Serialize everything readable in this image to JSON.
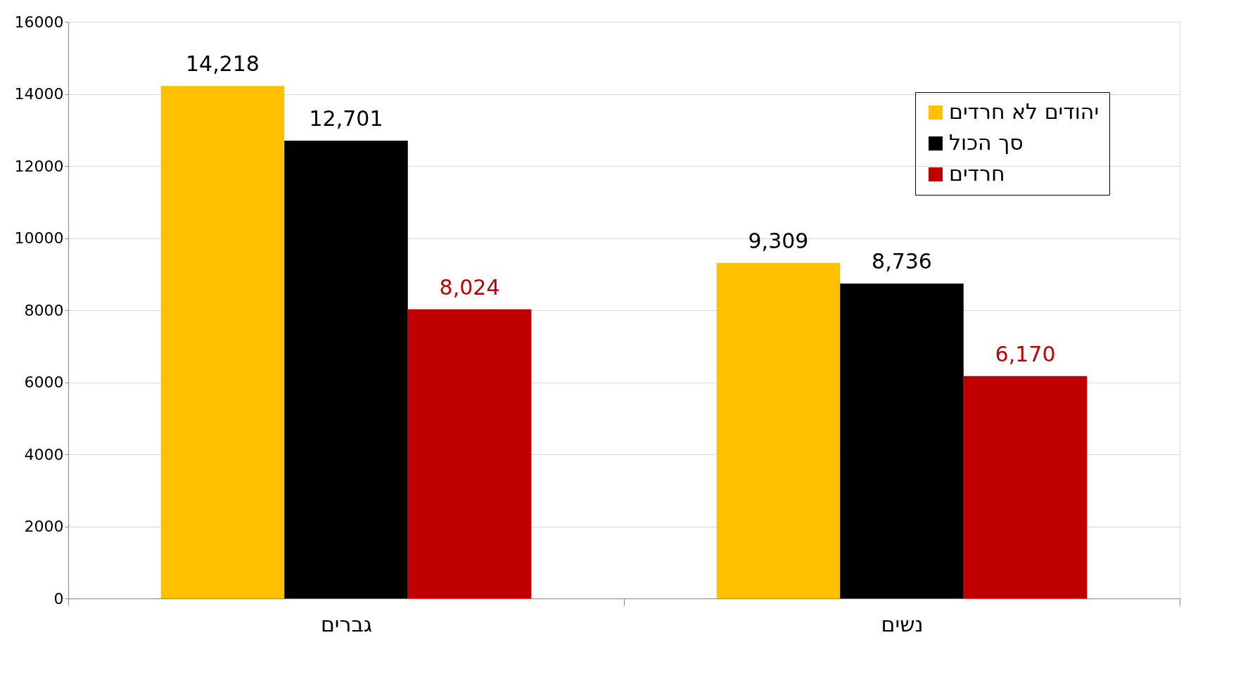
{
  "chart_data": {
    "type": "bar",
    "categories": [
      "גברים",
      "נשים"
    ],
    "series": [
      {
        "name": "יהודים לא חרדים",
        "color": "#ffc000",
        "values": [
          14218,
          9309
        ],
        "value_labels": [
          "14,218",
          "9,309"
        ]
      },
      {
        "name": "סך הכול",
        "color": "#000000",
        "values": [
          12701,
          8736
        ],
        "value_labels": [
          "12,701",
          "8,736"
        ]
      },
      {
        "name": "חרדים",
        "color": "#c00000",
        "values": [
          8024,
          6170
        ],
        "value_labels": [
          "8,024",
          "6,170"
        ]
      }
    ],
    "ylim": [
      0,
      16000
    ],
    "yticks": [
      0,
      2000,
      4000,
      6000,
      8000,
      10000,
      12000,
      14000,
      16000
    ],
    "grid": "y",
    "legend": "top right"
  }
}
